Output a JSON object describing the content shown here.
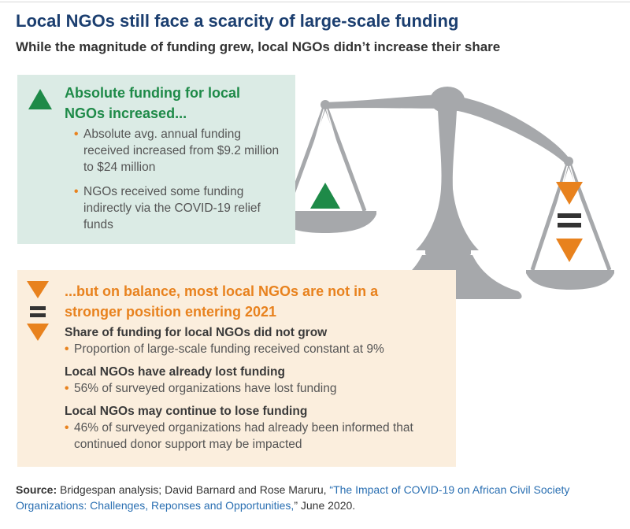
{
  "title": "Local NGOs still face a scarcity of large-scale funding",
  "subtitle": "While the magnitude of funding grew, local NGOs didn’t increase their share",
  "increase_panel": {
    "heading": "Absolute funding for local NGOs increased...",
    "icon": "up-triangle-icon",
    "bullets": [
      "Absolute avg. annual funding received increased from $9.2 million to $24 million",
      "NGOs received some funding indirectly via the COVID-19 relief funds"
    ]
  },
  "balance_panel": {
    "heading": "...but on balance, most local NGOs are not in a stronger position entering 2021",
    "icons": [
      "down-triangle-icon",
      "equals-icon",
      "down-triangle-icon"
    ],
    "sections": [
      {
        "heading": "Share of funding for local NGOs did not grow",
        "bullet": "Proportion of large-scale funding received constant at 9%"
      },
      {
        "heading": "Local NGOs have already lost funding",
        "bullet": "56% of surveyed organizations have lost funding"
      },
      {
        "heading": "Local NGOs may continue to lose funding",
        "bullet": "46% of surveyed organizations had already been informed that continued donor support may be impacted"
      }
    ]
  },
  "source": {
    "label": "Source:",
    "text_before": " Bridgespan analysis; David Barnard and Rose Maruru, ",
    "link_text": "“The Impact of COVID-19 on African Civil Society Organizations: Challenges, Reponses and Opportunities,",
    "text_after": "” June 2020."
  },
  "colors": {
    "title": "#1c3f70",
    "green": "#1e8a48",
    "orange": "#e8821e",
    "green_panel": "#dbebe5",
    "orange_panel": "#fbeedd",
    "scale": "#a6a8ab",
    "link": "#2a6fb2"
  }
}
